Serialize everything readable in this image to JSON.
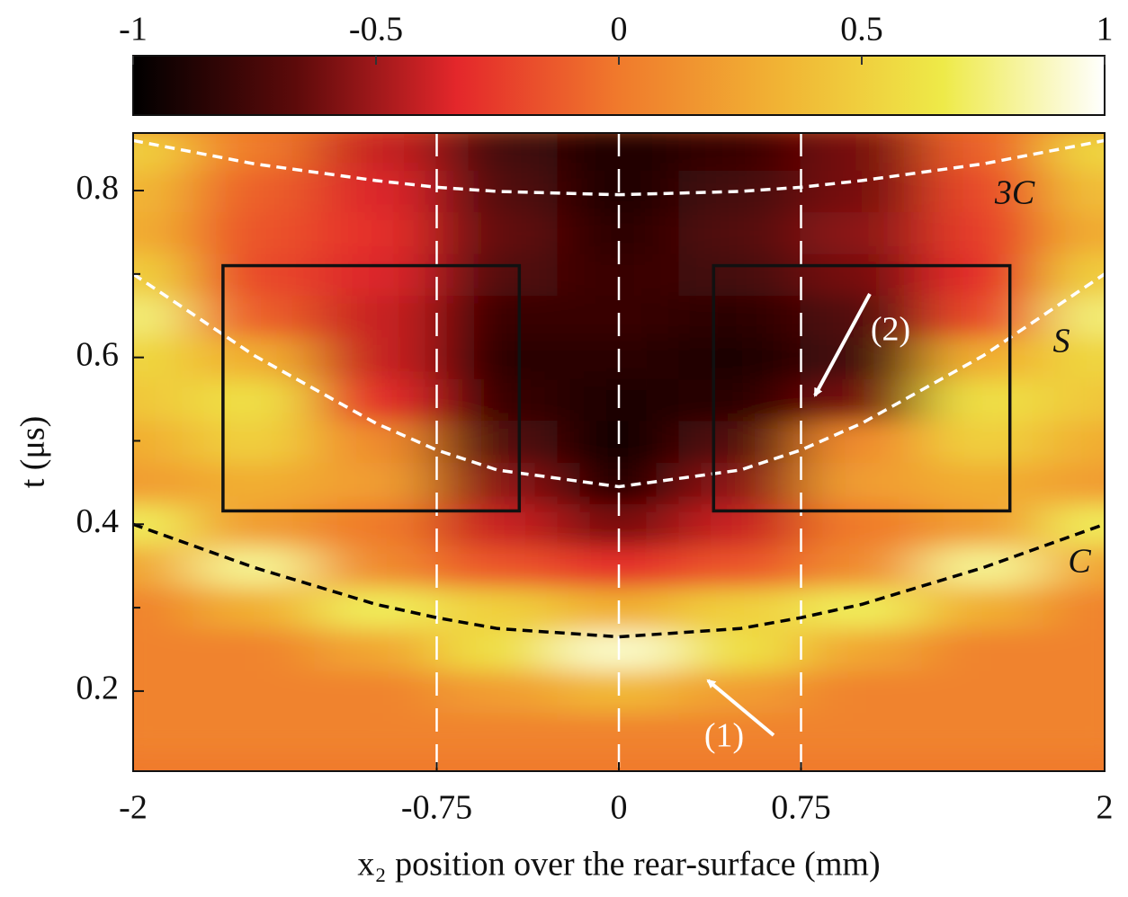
{
  "chart_data": {
    "type": "heatmap",
    "xlabel": "x₂ position over the rear-surface (mm)",
    "ylabel": "t (μs)",
    "xlim": [
      -2,
      2
    ],
    "xticks": [
      -2,
      -0.75,
      0,
      0.75,
      2
    ],
    "ylim": [
      0.104,
      0.869
    ],
    "yticks": [
      0.2,
      0.4,
      0.6,
      0.8
    ],
    "yminorticks": [
      0.3,
      0.5,
      0.7
    ],
    "clim": [
      -1,
      1
    ],
    "cticks": [
      -1,
      -0.5,
      0,
      0.5,
      1
    ],
    "colormap": [
      "#000000",
      "#5c0a0a",
      "#e4272b",
      "#f07a2c",
      "#f1b434",
      "#eeea48",
      "#ffffff"
    ],
    "x": [
      -2,
      -1.5,
      -1,
      -0.5,
      0,
      0.5,
      1,
      1.5,
      2
    ],
    "y": [
      0.15,
      0.2,
      0.25,
      0.3,
      0.35,
      0.4,
      0.45,
      0.5,
      0.55,
      0.6,
      0.65,
      0.7,
      0.75,
      0.8,
      0.85
    ],
    "z": [
      [
        0.05,
        0.05,
        0.05,
        0.05,
        0.05,
        0.05,
        0.05,
        0.05,
        0.05
      ],
      [
        0.05,
        0.05,
        0.05,
        0.2,
        0.35,
        0.2,
        0.05,
        0.05,
        0.05
      ],
      [
        0.05,
        0.05,
        0.25,
        0.6,
        0.9,
        0.6,
        0.25,
        0.05,
        0.05
      ],
      [
        0.05,
        0.3,
        0.7,
        0.5,
        0.3,
        0.5,
        0.7,
        0.3,
        0.05
      ],
      [
        0.25,
        0.8,
        0.1,
        -0.15,
        -0.3,
        -0.15,
        0.1,
        0.8,
        0.25
      ],
      [
        0.7,
        0.2,
        0,
        -0.4,
        -0.6,
        -0.4,
        0,
        0.2,
        0.7
      ],
      [
        0.2,
        0.3,
        0.2,
        -0.55,
        -0.9,
        -0.55,
        0.2,
        0.3,
        0.2
      ],
      [
        0.3,
        0.5,
        0.1,
        -0.7,
        -0.95,
        -0.7,
        0.1,
        0.5,
        0.3
      ],
      [
        0.45,
        0.6,
        -0.3,
        -0.8,
        -0.9,
        -0.85,
        -0.6,
        0.6,
        0.45
      ],
      [
        0.55,
        0.3,
        -0.4,
        -0.85,
        -0.85,
        -0.9,
        -0.75,
        0.3,
        0.55
      ],
      [
        0.75,
        -0.1,
        -0.4,
        -0.8,
        -0.8,
        -0.85,
        -0.7,
        -0.2,
        0.75
      ],
      [
        0.5,
        -0.2,
        -0.35,
        -0.7,
        -0.8,
        -0.75,
        -0.6,
        -0.3,
        0.5
      ],
      [
        0.3,
        -0.15,
        -0.3,
        -0.65,
        -0.85,
        -0.7,
        -0.55,
        -0.25,
        0.3
      ],
      [
        0.35,
        -0.1,
        -0.35,
        -0.7,
        -0.9,
        -0.75,
        -0.6,
        -0.2,
        0.4
      ],
      [
        0.5,
        0,
        -0.4,
        -0.75,
        -0.9,
        -0.8,
        -0.6,
        -0.1,
        0.55
      ]
    ],
    "series": [
      {
        "name": "3C",
        "color": "#ffffff",
        "x": [
          -2,
          -1.5,
          -1,
          -0.75,
          -0.5,
          0,
          0.5,
          0.75,
          1,
          1.5,
          2
        ],
        "values": [
          0.86,
          0.832,
          0.812,
          0.804,
          0.799,
          0.795,
          0.799,
          0.804,
          0.812,
          0.832,
          0.86
        ]
      },
      {
        "name": "S",
        "color": "#ffffff",
        "x": [
          -2,
          -1.5,
          -1,
          -0.75,
          -0.5,
          0,
          0.5,
          0.75,
          1,
          1.5,
          2
        ],
        "values": [
          0.7,
          0.602,
          0.521,
          0.489,
          0.465,
          0.445,
          0.465,
          0.489,
          0.521,
          0.602,
          0.7
        ]
      },
      {
        "name": "C",
        "color": "#000000",
        "x": [
          -2,
          -1.5,
          -1,
          -0.75,
          -0.5,
          0,
          0.5,
          0.75,
          1,
          1.5,
          2
        ],
        "values": [
          0.4,
          0.348,
          0.304,
          0.288,
          0.275,
          0.265,
          0.275,
          0.288,
          0.304,
          0.348,
          0.4
        ]
      }
    ],
    "vlines": [
      -0.75,
      0,
      0.75
    ],
    "boxes": [
      {
        "xlim": [
          -1.63,
          -0.41
        ],
        "ylim": [
          0.416,
          0.71
        ]
      },
      {
        "xlim": [
          0.39,
          1.61
        ],
        "ylim": [
          0.416,
          0.71
        ]
      }
    ],
    "annotations": [
      "(1)",
      "(2)"
    ]
  }
}
